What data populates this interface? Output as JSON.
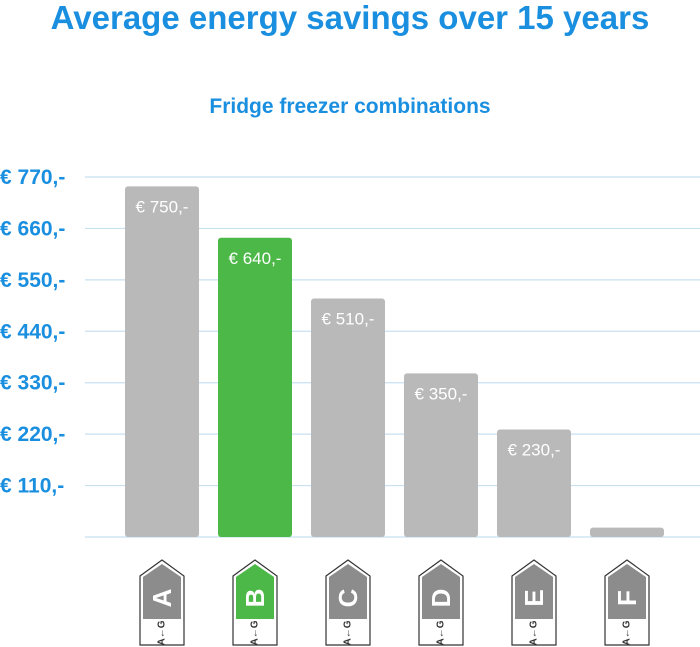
{
  "chart_data": {
    "type": "bar",
    "title": "Average energy savings over 15 years",
    "subtitle": "Fridge freezer combinations",
    "categories": [
      "A",
      "B",
      "C",
      "D",
      "E",
      "F"
    ],
    "values": [
      750,
      640,
      510,
      350,
      230,
      20
    ],
    "value_labels": [
      "€ 750,-",
      "€ 640,-",
      "€ 510,-",
      "€ 350,-",
      "€ 230,-",
      ""
    ],
    "ylim": [
      0,
      770
    ],
    "yticks": [
      110,
      220,
      330,
      440,
      550,
      660,
      770
    ],
    "ytick_labels": [
      "€ 110,-",
      "€ 220,-",
      "€ 330,-",
      "€ 440,-",
      "€ 550,-",
      "€ 660,-",
      "€ 770,-"
    ],
    "highlight_index": 1,
    "grid": true,
    "label_scale_text": "A←G",
    "colors": {
      "bar": "#b9b9b9",
      "highlight": "#4cb848",
      "grid": "#c8e1f2",
      "text": "#1a8fe0",
      "label_gray": "#8c8c8c"
    }
  }
}
